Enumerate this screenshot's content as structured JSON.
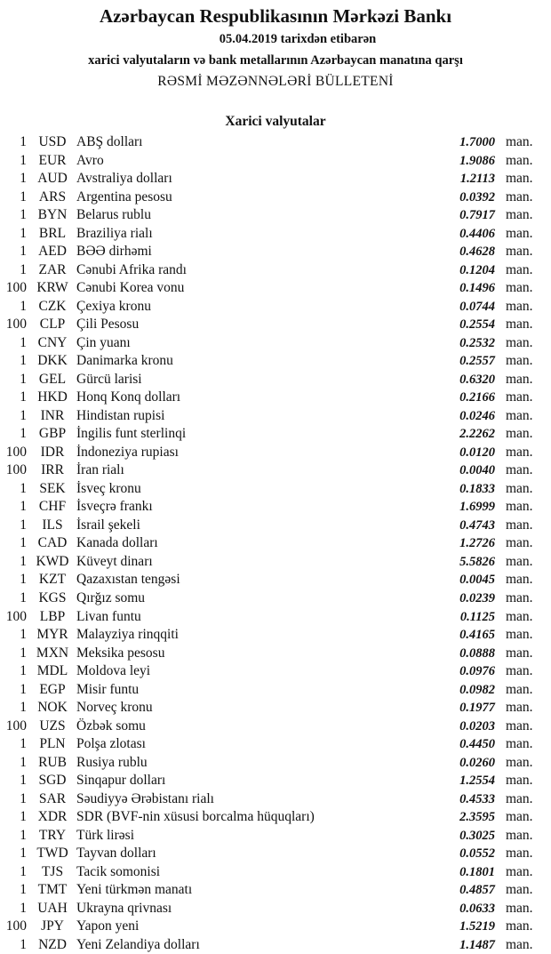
{
  "header": {
    "title": "Azərbaycan Respublikasının Mərkəzi Bankı",
    "date_line": "05.04.2019  tarixdən etibarən",
    "subtitle": "xarici valyutaların və bank metallarının Azərbaycan manatına qarşı",
    "bulletin": "RƏSMİ MƏZƏNNƏLƏRİ BÜLLETENİ"
  },
  "section_title": "Xarici valyutalar",
  "unit_label": "man.",
  "rows": [
    {
      "amount": "1",
      "code": "USD",
      "name": "ABŞ dolları",
      "rate": "1.7000"
    },
    {
      "amount": "1",
      "code": "EUR",
      "name": "Avro",
      "rate": "1.9086"
    },
    {
      "amount": "1",
      "code": "AUD",
      "name": "Avstraliya dolları",
      "rate": "1.2113"
    },
    {
      "amount": "1",
      "code": "ARS",
      "name": "Argentina pesosu",
      "rate": "0.0392"
    },
    {
      "amount": "1",
      "code": "BYN",
      "name": "Belarus rublu",
      "rate": "0.7917"
    },
    {
      "amount": "1",
      "code": "BRL",
      "name": "Braziliya rialı",
      "rate": "0.4406"
    },
    {
      "amount": "1",
      "code": "AED",
      "name": "BƏƏ dirhəmi",
      "rate": "0.4628"
    },
    {
      "amount": "1",
      "code": "ZAR",
      "name": "Cənubi Afrika randı",
      "rate": "0.1204"
    },
    {
      "amount": "100",
      "code": "KRW",
      "name": "Cənubi Korea vonu",
      "rate": "0.1496"
    },
    {
      "amount": "1",
      "code": "CZK",
      "name": "Çexiya kronu",
      "rate": "0.0744"
    },
    {
      "amount": "100",
      "code": "CLP",
      "name": "Çili Pesosu",
      "rate": "0.2554"
    },
    {
      "amount": "1",
      "code": "CNY",
      "name": "Çin yuanı",
      "rate": "0.2532"
    },
    {
      "amount": "1",
      "code": "DKK",
      "name": "Danimarka kronu",
      "rate": "0.2557"
    },
    {
      "amount": "1",
      "code": "GEL",
      "name": "Gürcü larisi",
      "rate": "0.6320"
    },
    {
      "amount": "1",
      "code": "HKD",
      "name": "Honq Konq dolları",
      "rate": "0.2166"
    },
    {
      "amount": "1",
      "code": "INR",
      "name": "Hindistan rupisi",
      "rate": "0.0246"
    },
    {
      "amount": "1",
      "code": "GBP",
      "name": "İngilis funt sterlinqi",
      "rate": "2.2262"
    },
    {
      "amount": "100",
      "code": "IDR",
      "name": "İndoneziya rupiası",
      "rate": "0.0120"
    },
    {
      "amount": "100",
      "code": "IRR",
      "name": "İran rialı",
      "rate": "0.0040"
    },
    {
      "amount": "1",
      "code": "SEK",
      "name": "İsveç kronu",
      "rate": "0.1833"
    },
    {
      "amount": "1",
      "code": "CHF",
      "name": "İsveçrə frankı",
      "rate": "1.6999"
    },
    {
      "amount": "1",
      "code": "ILS",
      "name": "İsrail şekeli",
      "rate": "0.4743"
    },
    {
      "amount": "1",
      "code": "CAD",
      "name": "Kanada dolları",
      "rate": "1.2726"
    },
    {
      "amount": "1",
      "code": "KWD",
      "name": "Küveyt dinarı",
      "rate": "5.5826"
    },
    {
      "amount": "1",
      "code": "KZT",
      "name": "Qazaxıstan tengəsi",
      "rate": "0.0045"
    },
    {
      "amount": "1",
      "code": "KGS",
      "name": "Qırğız somu",
      "rate": "0.0239"
    },
    {
      "amount": "100",
      "code": "LBP",
      "name": "Livan funtu",
      "rate": "0.1125"
    },
    {
      "amount": "1",
      "code": "MYR",
      "name": "Malayziya rinqqiti",
      "rate": "0.4165"
    },
    {
      "amount": "1",
      "code": "MXN",
      "name": "Meksika pesosu",
      "rate": "0.0888"
    },
    {
      "amount": "1",
      "code": "MDL",
      "name": "Moldova leyi",
      "rate": "0.0976"
    },
    {
      "amount": "1",
      "code": "EGP",
      "name": "Misir funtu",
      "rate": "0.0982"
    },
    {
      "amount": "1",
      "code": "NOK",
      "name": "Norveç kronu",
      "rate": "0.1977"
    },
    {
      "amount": "100",
      "code": "UZS",
      "name": "Özbək somu",
      "rate": "0.0203"
    },
    {
      "amount": "1",
      "code": "PLN",
      "name": "Polşa zlotası",
      "rate": "0.4450"
    },
    {
      "amount": "1",
      "code": "RUB",
      "name": "Rusiya rublu",
      "rate": "0.0260"
    },
    {
      "amount": "1",
      "code": "SGD",
      "name": "Sinqapur dolları",
      "rate": "1.2554"
    },
    {
      "amount": "1",
      "code": "SAR",
      "name": "Səudiyyə Ərəbistanı rialı",
      "rate": "0.4533"
    },
    {
      "amount": "1",
      "code": "XDR",
      "name": "SDR (BVF-nin xüsusi borcalma hüquqları)",
      "rate": "2.3595"
    },
    {
      "amount": "1",
      "code": "TRY",
      "name": "Türk lirəsi",
      "rate": "0.3025"
    },
    {
      "amount": "1",
      "code": "TWD",
      "name": "Tayvan dolları",
      "rate": "0.0552"
    },
    {
      "amount": "1",
      "code": "TJS",
      "name": "Tacik somonisi",
      "rate": "0.1801"
    },
    {
      "amount": "1",
      "code": "TMT",
      "name": "Yeni türkmən manatı",
      "rate": "0.4857"
    },
    {
      "amount": "1",
      "code": "UAH",
      "name": "Ukrayna qrivnası",
      "rate": "0.0633"
    },
    {
      "amount": "100",
      "code": "JPY",
      "name": "Yapon yeni",
      "rate": "1.5219"
    },
    {
      "amount": "1",
      "code": "NZD",
      "name": "Yeni Zelandiya dolları",
      "rate": "1.1487"
    }
  ]
}
